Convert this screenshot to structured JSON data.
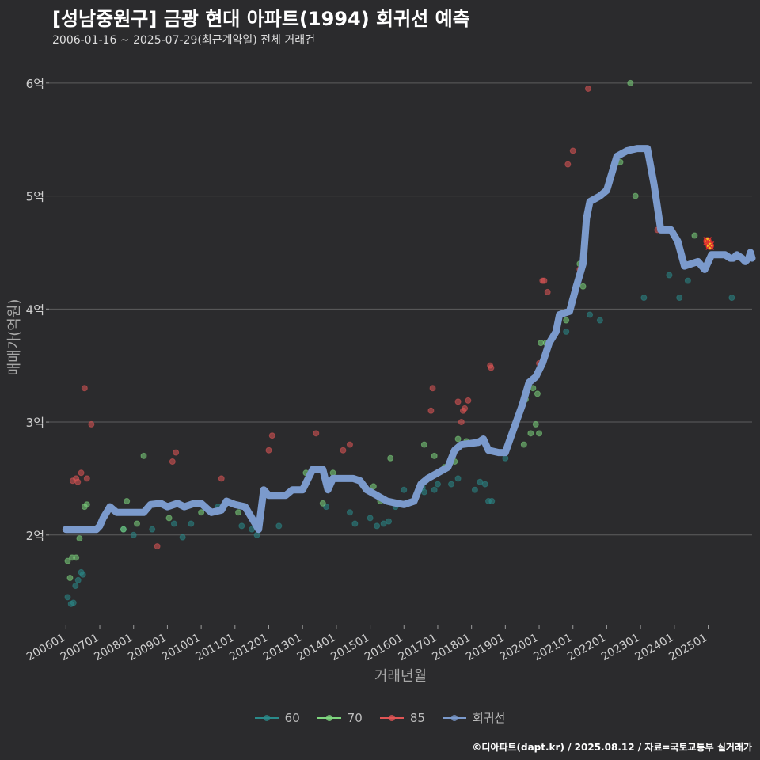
{
  "title": "[성남중원구] 금광 현대 아파트(1994) 회귀선 예측",
  "subtitle": "2006-01-16 ~ 2025-07-29(최근계약일) 전체 거래건",
  "credit": "©디아파트(dapt.kr) / 2025.08.12 / 자료=국토교통부 실거래가",
  "colors": {
    "background": "#2b2b2d",
    "grid": "#5e5e5e",
    "s60": "#2a8a8a",
    "s70": "#7ed67e",
    "s85": "#e05555",
    "regression": "#7b9acc",
    "highlight": "#e03030"
  },
  "legend": [
    {
      "label": "60",
      "color": "#2a8a8a"
    },
    {
      "label": "70",
      "color": "#7ed67e"
    },
    {
      "label": "85",
      "color": "#e05555"
    },
    {
      "label": "회귀선",
      "color": "#7b9acc"
    }
  ],
  "chart_data": {
    "type": "scatter",
    "xlabel": "거래년월",
    "ylabel": "매매가(억원)",
    "xlim": [
      2005.5,
      2026.3
    ],
    "ylim": [
      1.2,
      6.3
    ],
    "grid": true,
    "legend_position": "bottom",
    "x_ticks": [
      {
        "x": 2006.0,
        "label": "200601"
      },
      {
        "x": 2007.0,
        "label": "200701"
      },
      {
        "x": 2008.0,
        "label": "200801"
      },
      {
        "x": 2009.0,
        "label": "200901"
      },
      {
        "x": 2010.0,
        "label": "201001"
      },
      {
        "x": 2011.0,
        "label": "201101"
      },
      {
        "x": 2012.0,
        "label": "201201"
      },
      {
        "x": 2013.0,
        "label": "201301"
      },
      {
        "x": 2014.0,
        "label": "201401"
      },
      {
        "x": 2015.0,
        "label": "201501"
      },
      {
        "x": 2016.0,
        "label": "201601"
      },
      {
        "x": 2017.0,
        "label": "201701"
      },
      {
        "x": 2018.0,
        "label": "201801"
      },
      {
        "x": 2019.0,
        "label": "201901"
      },
      {
        "x": 2020.0,
        "label": "202001"
      },
      {
        "x": 2021.0,
        "label": "202101"
      },
      {
        "x": 2022.0,
        "label": "202201"
      },
      {
        "x": 2023.0,
        "label": "202301"
      },
      {
        "x": 2024.0,
        "label": "202401"
      },
      {
        "x": 2025.0,
        "label": "202501"
      }
    ],
    "y_ticks": [
      {
        "y": 2,
        "label": "2억"
      },
      {
        "y": 3,
        "label": "3억"
      },
      {
        "y": 4,
        "label": "4억"
      },
      {
        "y": 5,
        "label": "5억"
      },
      {
        "y": 6,
        "label": "6억"
      }
    ],
    "series": [
      {
        "name": "60",
        "points": [
          [
            2006.05,
            1.45
          ],
          [
            2006.15,
            1.39
          ],
          [
            2006.22,
            1.4
          ],
          [
            2006.28,
            1.55
          ],
          [
            2006.36,
            1.6
          ],
          [
            2006.45,
            1.67
          ],
          [
            2006.5,
            1.65
          ],
          [
            2007.7,
            2.05
          ],
          [
            2008.0,
            2.0
          ],
          [
            2008.55,
            2.05
          ],
          [
            2009.2,
            2.1
          ],
          [
            2009.45,
            1.98
          ],
          [
            2009.7,
            2.1
          ],
          [
            2010.5,
            2.25
          ],
          [
            2011.2,
            2.08
          ],
          [
            2011.5,
            2.05
          ],
          [
            2011.65,
            2.0
          ],
          [
            2012.3,
            2.08
          ],
          [
            2013.7,
            2.25
          ],
          [
            2014.4,
            2.2
          ],
          [
            2014.55,
            2.1
          ],
          [
            2015.0,
            2.15
          ],
          [
            2015.2,
            2.08
          ],
          [
            2015.4,
            2.1
          ],
          [
            2015.55,
            2.12
          ],
          [
            2015.75,
            2.25
          ],
          [
            2016.0,
            2.4
          ],
          [
            2016.55,
            2.42
          ],
          [
            2016.6,
            2.38
          ],
          [
            2016.9,
            2.4
          ],
          [
            2017.0,
            2.45
          ],
          [
            2017.4,
            2.45
          ],
          [
            2017.6,
            2.5
          ],
          [
            2018.1,
            2.4
          ],
          [
            2018.25,
            2.47
          ],
          [
            2018.4,
            2.45
          ],
          [
            2018.5,
            2.3
          ],
          [
            2018.6,
            2.3
          ],
          [
            2019.0,
            2.68
          ],
          [
            2020.8,
            3.8
          ],
          [
            2021.5,
            3.95
          ],
          [
            2021.8,
            3.9
          ],
          [
            2023.1,
            4.1
          ],
          [
            2023.85,
            4.3
          ],
          [
            2024.15,
            4.1
          ],
          [
            2024.4,
            4.25
          ],
          [
            2025.7,
            4.1
          ]
        ]
      },
      {
        "name": "70",
        "points": [
          [
            2006.05,
            1.77
          ],
          [
            2006.12,
            1.62
          ],
          [
            2006.18,
            1.8
          ],
          [
            2006.3,
            1.8
          ],
          [
            2006.4,
            1.97
          ],
          [
            2006.55,
            2.25
          ],
          [
            2006.62,
            2.27
          ],
          [
            2007.7,
            2.05
          ],
          [
            2007.8,
            2.3
          ],
          [
            2008.1,
            2.1
          ],
          [
            2008.3,
            2.7
          ],
          [
            2009.05,
            2.15
          ],
          [
            2010.0,
            2.2
          ],
          [
            2011.1,
            2.2
          ],
          [
            2012.0,
            2.35
          ],
          [
            2013.1,
            2.55
          ],
          [
            2013.6,
            2.28
          ],
          [
            2013.9,
            2.55
          ],
          [
            2014.0,
            2.5
          ],
          [
            2015.1,
            2.43
          ],
          [
            2015.3,
            2.3
          ],
          [
            2015.6,
            2.68
          ],
          [
            2016.6,
            2.8
          ],
          [
            2016.9,
            2.7
          ],
          [
            2017.2,
            2.6
          ],
          [
            2017.5,
            2.65
          ],
          [
            2017.6,
            2.85
          ],
          [
            2017.85,
            2.83
          ],
          [
            2019.55,
            2.8
          ],
          [
            2019.6,
            3.2
          ],
          [
            2019.75,
            2.9
          ],
          [
            2019.82,
            3.3
          ],
          [
            2019.9,
            2.98
          ],
          [
            2019.95,
            3.25
          ],
          [
            2020.0,
            2.9
          ],
          [
            2020.05,
            3.7
          ],
          [
            2020.2,
            3.7
          ],
          [
            2020.8,
            3.9
          ],
          [
            2021.2,
            4.4
          ],
          [
            2021.3,
            4.2
          ],
          [
            2022.4,
            5.3
          ],
          [
            2022.7,
            6.0
          ],
          [
            2022.85,
            5.0
          ],
          [
            2024.6,
            4.65
          ]
        ]
      },
      {
        "name": "85",
        "points": [
          [
            2006.2,
            2.48
          ],
          [
            2006.3,
            2.5
          ],
          [
            2006.35,
            2.47
          ],
          [
            2006.45,
            2.55
          ],
          [
            2006.55,
            3.3
          ],
          [
            2006.62,
            2.5
          ],
          [
            2006.75,
            2.98
          ],
          [
            2008.7,
            1.9
          ],
          [
            2009.15,
            2.65
          ],
          [
            2009.25,
            2.73
          ],
          [
            2010.6,
            2.5
          ],
          [
            2012.0,
            2.75
          ],
          [
            2012.1,
            2.88
          ],
          [
            2013.4,
            2.9
          ],
          [
            2014.2,
            2.75
          ],
          [
            2014.4,
            2.8
          ],
          [
            2016.8,
            3.1
          ],
          [
            2016.85,
            3.3
          ],
          [
            2017.6,
            3.18
          ],
          [
            2017.7,
            3.0
          ],
          [
            2017.75,
            3.1
          ],
          [
            2017.8,
            3.12
          ],
          [
            2017.9,
            3.19
          ],
          [
            2018.55,
            3.5
          ],
          [
            2018.58,
            3.48
          ],
          [
            2020.0,
            3.52
          ],
          [
            2020.1,
            4.25
          ],
          [
            2020.15,
            4.25
          ],
          [
            2020.25,
            4.15
          ],
          [
            2020.85,
            5.28
          ],
          [
            2021.0,
            5.4
          ],
          [
            2021.2,
            4.35
          ],
          [
            2021.45,
            5.95
          ],
          [
            2023.5,
            4.7
          ],
          [
            2025.0,
            4.6
          ]
        ]
      }
    ],
    "regression": {
      "name": "회귀선",
      "points": [
        [
          2006.0,
          2.05
        ],
        [
          2006.9,
          2.05
        ],
        [
          2007.0,
          2.08
        ],
        [
          2007.1,
          2.15
        ],
        [
          2007.2,
          2.2
        ],
        [
          2007.3,
          2.25
        ],
        [
          2007.5,
          2.2
        ],
        [
          2008.0,
          2.2
        ],
        [
          2008.3,
          2.2
        ],
        [
          2008.5,
          2.27
        ],
        [
          2008.8,
          2.28
        ],
        [
          2009.0,
          2.25
        ],
        [
          2009.3,
          2.28
        ],
        [
          2009.5,
          2.25
        ],
        [
          2009.8,
          2.28
        ],
        [
          2010.0,
          2.28
        ],
        [
          2010.3,
          2.2
        ],
        [
          2010.6,
          2.22
        ],
        [
          2010.75,
          2.3
        ],
        [
          2011.0,
          2.27
        ],
        [
          2011.3,
          2.25
        ],
        [
          2011.5,
          2.15
        ],
        [
          2011.7,
          2.05
        ],
        [
          2011.85,
          2.4
        ],
        [
          2012.0,
          2.35
        ],
        [
          2012.5,
          2.35
        ],
        [
          2012.7,
          2.4
        ],
        [
          2013.0,
          2.4
        ],
        [
          2013.3,
          2.58
        ],
        [
          2013.6,
          2.58
        ],
        [
          2013.75,
          2.4
        ],
        [
          2013.9,
          2.5
        ],
        [
          2014.2,
          2.5
        ],
        [
          2014.5,
          2.5
        ],
        [
          2014.7,
          2.48
        ],
        [
          2014.9,
          2.4
        ],
        [
          2015.2,
          2.35
        ],
        [
          2015.5,
          2.3
        ],
        [
          2015.8,
          2.28
        ],
        [
          2016.0,
          2.27
        ],
        [
          2016.3,
          2.3
        ],
        [
          2016.5,
          2.45
        ],
        [
          2016.7,
          2.5
        ],
        [
          2017.0,
          2.55
        ],
        [
          2017.3,
          2.6
        ],
        [
          2017.5,
          2.75
        ],
        [
          2017.7,
          2.8
        ],
        [
          2018.2,
          2.82
        ],
        [
          2018.35,
          2.85
        ],
        [
          2018.5,
          2.75
        ],
        [
          2018.8,
          2.73
        ],
        [
          2019.0,
          2.73
        ],
        [
          2019.2,
          2.9
        ],
        [
          2019.5,
          3.15
        ],
        [
          2019.7,
          3.35
        ],
        [
          2019.9,
          3.4
        ],
        [
          2020.1,
          3.52
        ],
        [
          2020.3,
          3.7
        ],
        [
          2020.5,
          3.8
        ],
        [
          2020.6,
          3.95
        ],
        [
          2020.9,
          3.98
        ],
        [
          2021.1,
          4.2
        ],
        [
          2021.3,
          4.4
        ],
        [
          2021.4,
          4.8
        ],
        [
          2021.5,
          4.95
        ],
        [
          2021.8,
          5.0
        ],
        [
          2022.0,
          5.05
        ],
        [
          2022.3,
          5.35
        ],
        [
          2022.6,
          5.4
        ],
        [
          2022.9,
          5.42
        ],
        [
          2023.0,
          5.42
        ],
        [
          2023.2,
          5.42
        ],
        [
          2023.4,
          5.1
        ],
        [
          2023.6,
          4.7
        ],
        [
          2023.9,
          4.7
        ],
        [
          2024.1,
          4.6
        ],
        [
          2024.3,
          4.38
        ],
        [
          2024.5,
          4.4
        ],
        [
          2024.7,
          4.42
        ],
        [
          2024.9,
          4.35
        ],
        [
          2025.1,
          4.48
        ],
        [
          2025.3,
          4.48
        ],
        [
          2025.5,
          4.48
        ],
        [
          2025.65,
          4.45
        ],
        [
          2025.75,
          4.45
        ],
        [
          2025.85,
          4.48
        ],
        [
          2026.0,
          4.45
        ],
        [
          2026.1,
          4.42
        ],
        [
          2026.2,
          4.45
        ],
        [
          2026.25,
          4.5
        ],
        [
          2026.3,
          4.45
        ]
      ]
    },
    "highlight_points": [
      [
        2024.98,
        4.6
      ],
      [
        2025.05,
        4.56
      ]
    ]
  }
}
